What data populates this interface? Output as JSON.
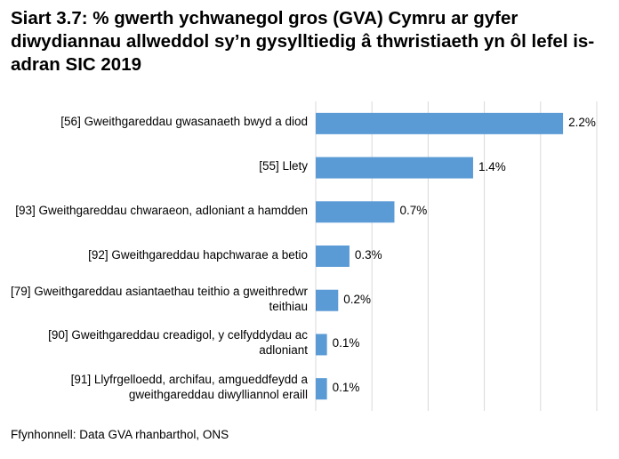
{
  "title": "Siart 3.7: % gwerth ychwanegol gros (GVA) Cymru ar gyfer diwydiannau allweddol sy’n gysylltiedig â thwristiaeth yn ôl lefel is-adran SIC 2019",
  "source": "Ffynhonnell: Data GVA rhanbarthol, ONS",
  "colors": {
    "bar": "#5b9bd5",
    "grid": "#d9d9d9"
  },
  "chart_data": {
    "type": "bar",
    "orientation": "horizontal",
    "title": "Siart 3.7: % gwerth ychwanegol gros (GVA) Cymru ar gyfer diwydiannau allweddol sy’n gysylltiedig â thwristiaeth yn ôl lefel is-adran SIC 2019",
    "categories": [
      "[56] Gweithgareddau gwasanaeth bwyd a diod",
      "[55] Llety",
      "[93] Gweithgareddau chwaraeon, adloniant a hamdden",
      "[92] Gweithgareddau hapchwarae a betio",
      "[79] Gweithgareddau asiantaethau teithio a gweithredwr teithiau",
      "[90] Gweithgareddau creadigol, y celfyddydau ac adloniant",
      "[91] Llyfrgelloedd, archifau, amgueddfeydd a gweithgareddau diwylliannol eraill"
    ],
    "values": [
      2.2,
      1.4,
      0.7,
      0.3,
      0.2,
      0.1,
      0.1
    ],
    "data_labels": [
      "2.2%",
      "1.4%",
      "0.7%",
      "0.3%",
      "0.2%",
      "0.1%",
      "0.1%"
    ],
    "xlim": [
      0,
      2.5
    ],
    "grid": true,
    "xlabel": "",
    "ylabel": ""
  }
}
